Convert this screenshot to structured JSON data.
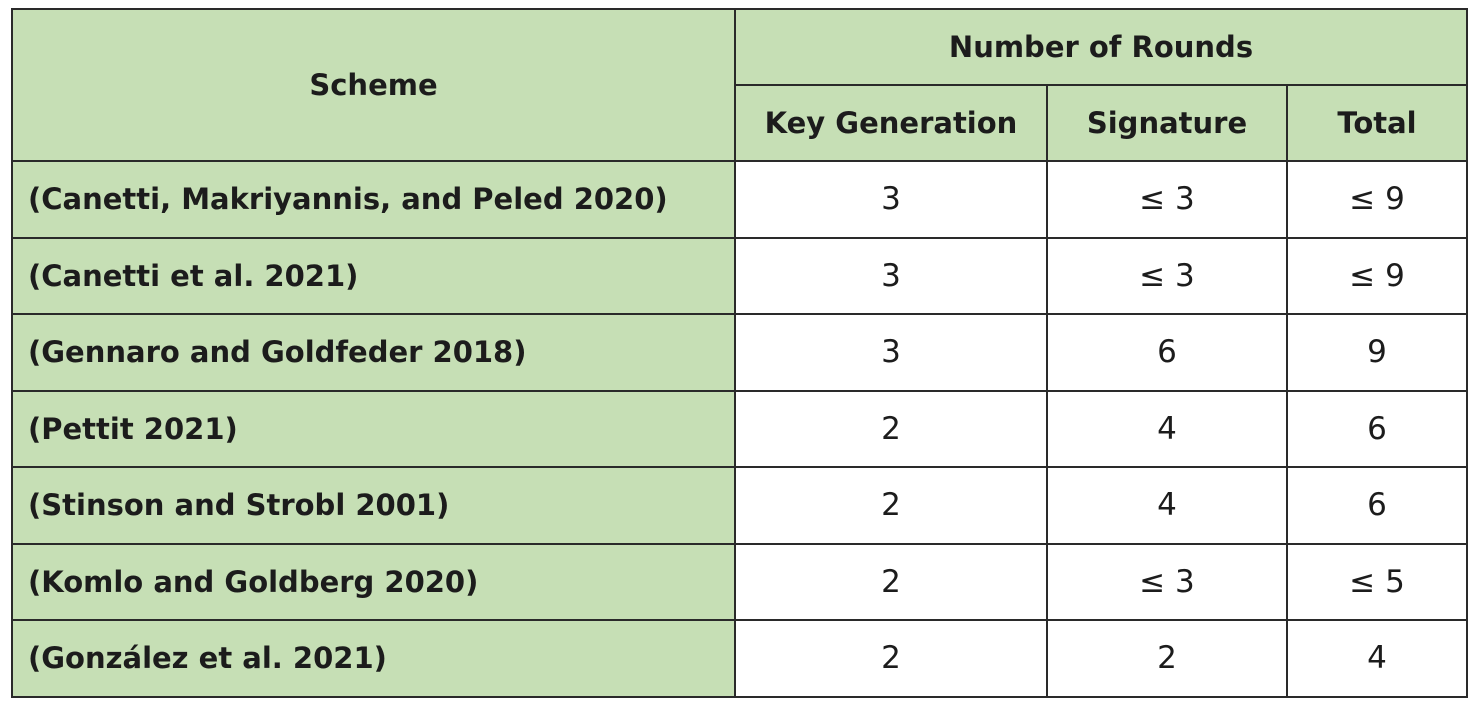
{
  "header": {
    "scheme": "Scheme",
    "group": "Number of Rounds",
    "key_generation": "Key Generation",
    "signature": "Signature",
    "total": "Total"
  },
  "rows": [
    {
      "scheme": "(Canetti, Makriyannis, and Peled 2020)",
      "key_generation": "3",
      "signature": "≤ 3",
      "total": "≤ 9"
    },
    {
      "scheme": "(Canetti et al. 2021)",
      "key_generation": "3",
      "signature": "≤ 3",
      "total": "≤ 9"
    },
    {
      "scheme": "(Gennaro and Goldfeder 2018)",
      "key_generation": "3",
      "signature": "6",
      "total": "9"
    },
    {
      "scheme": "(Pettit 2021)",
      "key_generation": "2",
      "signature": "4",
      "total": "6"
    },
    {
      "scheme": "(Stinson and Strobl 2001)",
      "key_generation": "2",
      "signature": "4",
      "total": "6"
    },
    {
      "scheme": "(Komlo and Goldberg 2020)",
      "key_generation": "2",
      "signature": "≤ 3",
      "total": "≤ 5"
    },
    {
      "scheme": "(González et al. 2021)",
      "key_generation": "2",
      "signature": "2",
      "total": "4"
    }
  ],
  "colors": {
    "header_bg": "#c6dfb5",
    "border": "#2a2a2a",
    "text": "#1c1c1c"
  }
}
